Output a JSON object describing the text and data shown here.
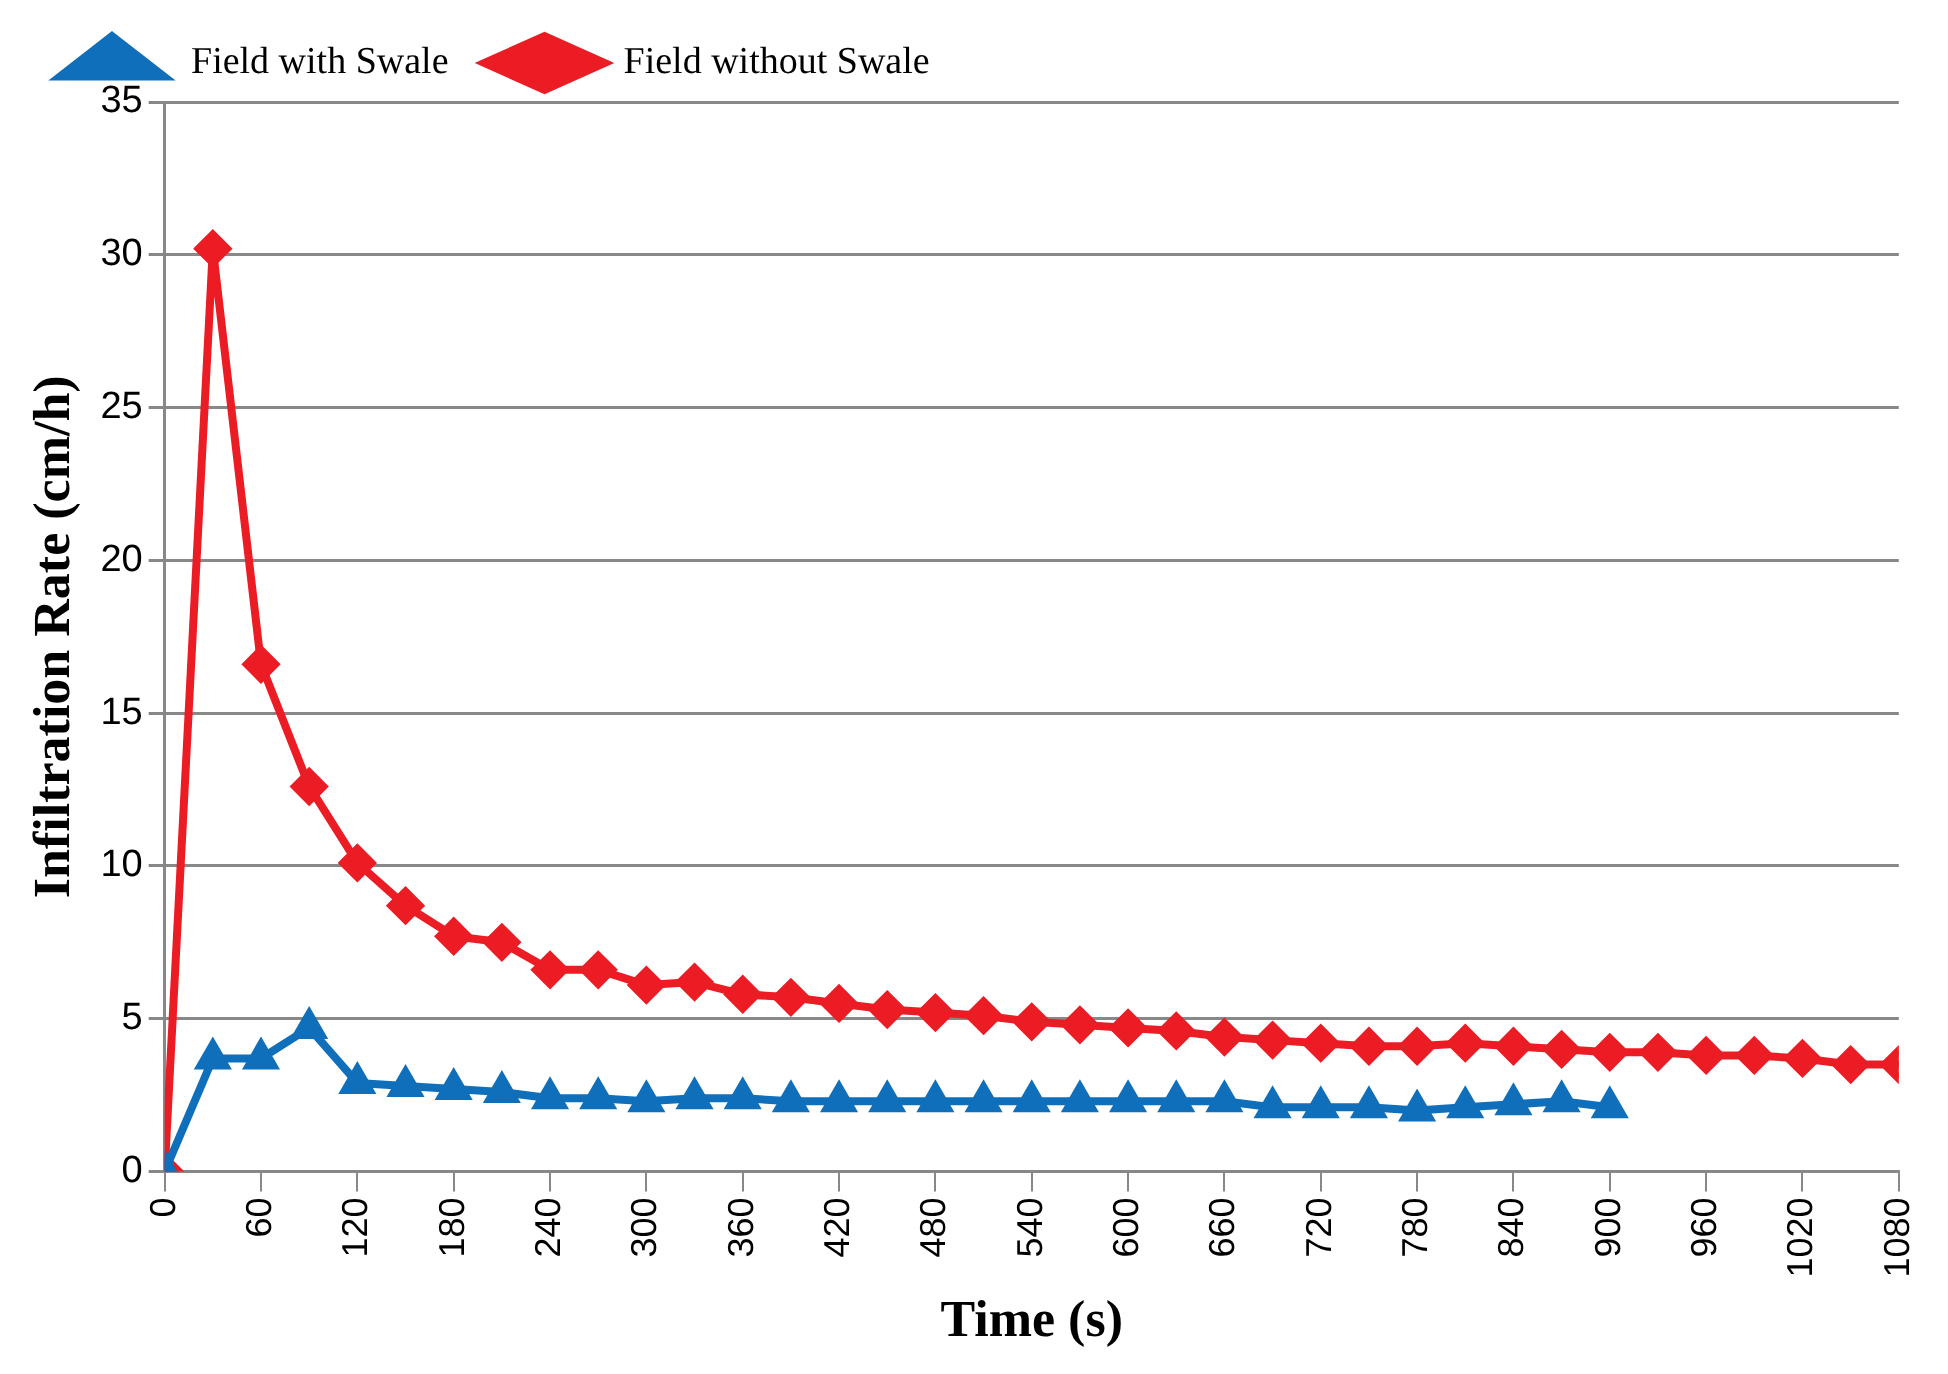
{
  "chart_data": {
    "type": "line",
    "xlabel": "Time (s)",
    "ylabel": "Infiltration Rate (cm/h)",
    "xlim": [
      0,
      1080
    ],
    "xticks": [
      0,
      60,
      120,
      180,
      240,
      300,
      360,
      420,
      480,
      540,
      600,
      660,
      720,
      780,
      840,
      900,
      960,
      1020,
      1080
    ],
    "ylim": [
      0,
      35
    ],
    "yticks": [
      0,
      5,
      10,
      15,
      20,
      25,
      30,
      35
    ],
    "grid": "y",
    "legend": "top left",
    "line_style": "solid",
    "series": [
      {
        "name": "Field with Swale",
        "color": "#0f6fba",
        "marker": "triangle",
        "x": [
          0,
          30,
          60,
          90,
          120,
          150,
          180,
          210,
          240,
          270,
          300,
          330,
          360,
          390,
          420,
          450,
          480,
          510,
          540,
          570,
          600,
          630,
          660,
          690,
          720,
          750,
          780,
          810,
          840,
          870,
          900
        ],
        "values": [
          0,
          3.7,
          3.7,
          4.7,
          2.9,
          2.8,
          2.7,
          2.6,
          2.4,
          2.4,
          2.3,
          2.4,
          2.4,
          2.3,
          2.3,
          2.3,
          2.3,
          2.3,
          2.3,
          2.3,
          2.3,
          2.3,
          2.3,
          2.1,
          2.1,
          2.1,
          2.0,
          2.1,
          2.2,
          2.3,
          2.1
        ]
      },
      {
        "name": "Field without Swale",
        "color": "#ec1c24",
        "marker": "diamond",
        "x": [
          0,
          30,
          60,
          90,
          120,
          150,
          180,
          210,
          240,
          270,
          300,
          330,
          360,
          390,
          420,
          450,
          480,
          510,
          540,
          570,
          600,
          630,
          660,
          690,
          720,
          750,
          780,
          810,
          840,
          870,
          900,
          930,
          960,
          990,
          1020,
          1050,
          1080
        ],
        "values": [
          0,
          30.2,
          16.6,
          12.6,
          10.1,
          8.7,
          7.7,
          7.5,
          6.6,
          6.6,
          6.1,
          6.2,
          5.8,
          5.7,
          5.5,
          5.3,
          5.2,
          5.1,
          4.9,
          4.8,
          4.7,
          4.6,
          4.4,
          4.3,
          4.2,
          4.1,
          4.1,
          4.2,
          4.1,
          4.0,
          3.9,
          3.9,
          3.8,
          3.8,
          3.7,
          3.5,
          3.5
        ]
      }
    ]
  }
}
